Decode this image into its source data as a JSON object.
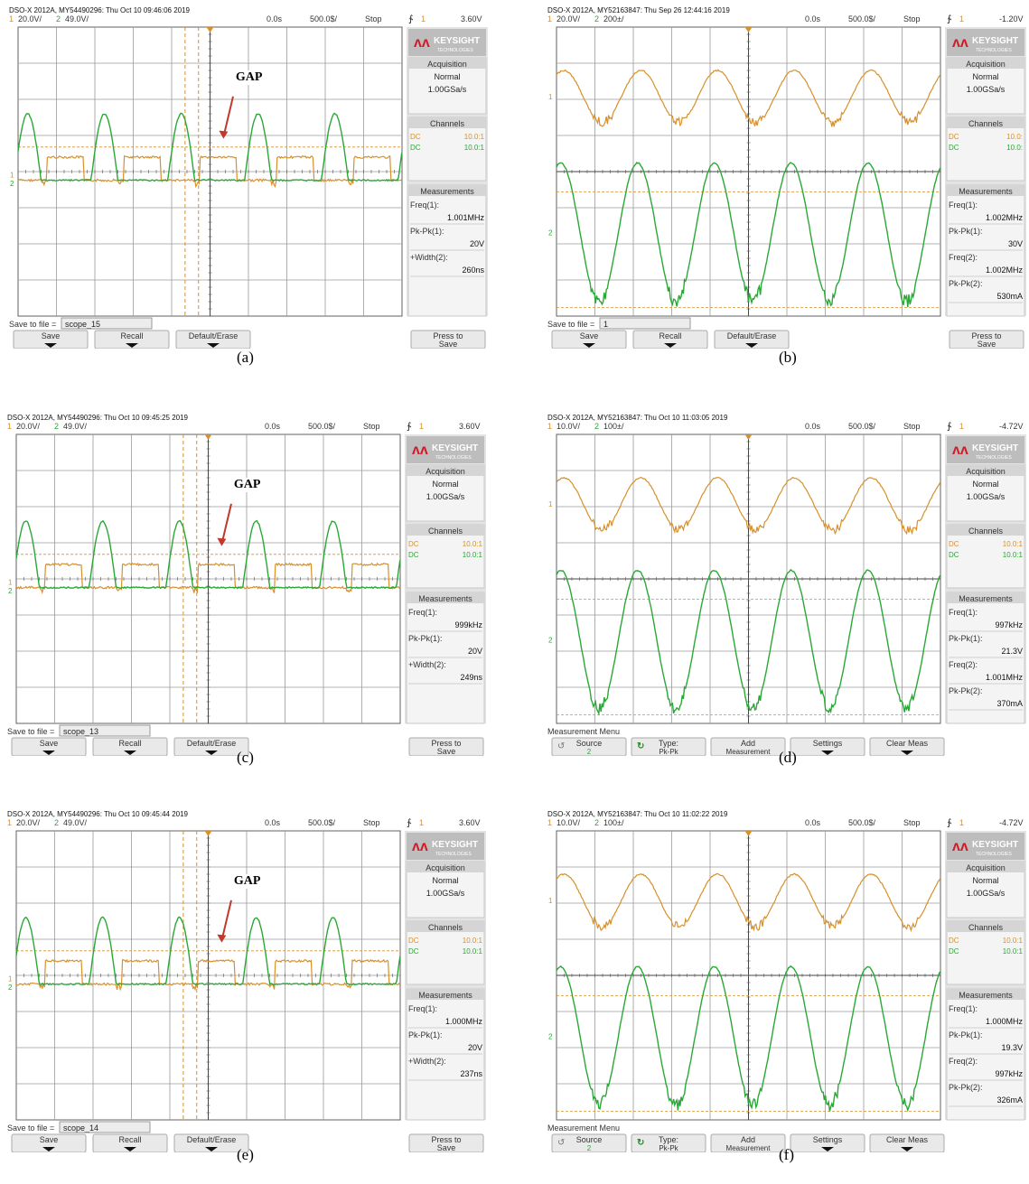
{
  "colors": {
    "ch1": "#d7902b",
    "ch2": "#2aa836",
    "brand": "#d01c2a",
    "grid": "#606060",
    "sidepanel": "#e3e3e3",
    "softkey": "#e9e9e9"
  },
  "panels": [
    {
      "caption": "(a)",
      "header": "DSO-X 2012A, MY54490296: Thu Oct 10 09:46:06 2019",
      "ch1_scale": "20.0V/",
      "ch2_scale": "49.0V/",
      "time_pos": "0.0s",
      "time_scale": "500.0$/",
      "run_state": "Stop",
      "trig_ch": "1",
      "trig_level": "3.60V",
      "brand": "KEYSIGHT",
      "brand_sub": "TECHNOLOGIES",
      "gap_label": "GAP",
      "acquisition": {
        "title": "Acquisition",
        "mode": "Normal",
        "rate": "1.00GSa/s"
      },
      "channels": {
        "title": "Channels",
        "rows": [
          {
            "coupling": "DC",
            "probe": "10.0:1"
          },
          {
            "coupling": "DC",
            "probe": "10.0:1"
          }
        ]
      },
      "measurements": {
        "title": "Measurements",
        "items": [
          {
            "label": "Freq(1):",
            "value": "1.001MHz"
          },
          {
            "label": "Pk-Pk(1):",
            "value": "20V"
          },
          {
            "label": "+Width(2):",
            "value": "260ns"
          }
        ]
      },
      "file_prompt": {
        "label": "Save to file =",
        "value": "scope_15"
      },
      "softkeys": [
        "Save",
        "Recall",
        "Default/Erase"
      ],
      "right_key": {
        "line1": "Press to",
        "line2": "Save"
      }
    },
    {
      "caption": "(b)",
      "header": "DSO-X 2012A, MY52163847: Thu Sep 26 12:44:16 2019",
      "ch1_scale": "20.0V/",
      "ch2_scale": "200±/",
      "time_pos": "0.0s",
      "time_scale": "500.0$/",
      "run_state": "Stop",
      "trig_ch": "1",
      "trig_level": "-1.20V",
      "brand": "KEYSIGHT",
      "brand_sub": "TECHNOLOGIES",
      "acquisition": {
        "title": "Acquisition",
        "mode": "Normal",
        "rate": "1.00GSa/s"
      },
      "channels": {
        "title": "Channels",
        "rows": [
          {
            "coupling": "DC",
            "probe": "10.0:"
          },
          {
            "coupling": "DC",
            "probe": "10.0:"
          }
        ]
      },
      "measurements": {
        "title": "Measurements",
        "items": [
          {
            "label": "Freq(1):",
            "value": "1.002MHz"
          },
          {
            "label": "Pk-Pk(1):",
            "value": "30V"
          },
          {
            "label": "Freq(2):",
            "value": "1.002MHz"
          },
          {
            "label": "Pk-Pk(2):",
            "value": "530mA"
          }
        ]
      },
      "file_prompt": {
        "label": "Save to file =",
        "value": "1"
      },
      "softkeys": [
        "Save",
        "Recall",
        "Default/Erase"
      ],
      "right_key": {
        "line1": "Press to",
        "line2": "Save"
      }
    },
    {
      "caption": "(c)",
      "header": "DSO-X 2012A, MY54490296: Thu Oct 10 09:45:25 2019",
      "ch1_scale": "20.0V/",
      "ch2_scale": "49.0V/",
      "time_pos": "0.0s",
      "time_scale": "500.0$/",
      "run_state": "Stop",
      "trig_ch": "1",
      "trig_level": "3.60V",
      "brand": "KEYSIGHT",
      "brand_sub": "TECHNOLOGIES",
      "gap_label": "GAP",
      "acquisition": {
        "title": "Acquisition",
        "mode": "Normal",
        "rate": "1.00GSa/s"
      },
      "channels": {
        "title": "Channels",
        "rows": [
          {
            "coupling": "DC",
            "probe": "10.0:1"
          },
          {
            "coupling": "DC",
            "probe": "10.0:1"
          }
        ]
      },
      "measurements": {
        "title": "Measurements",
        "items": [
          {
            "label": "Freq(1):",
            "value": "999kHz"
          },
          {
            "label": "Pk-Pk(1):",
            "value": "20V"
          },
          {
            "label": "+Width(2):",
            "value": "249ns"
          }
        ]
      },
      "file_prompt": {
        "label": "Save to file =",
        "value": "scope_13"
      },
      "softkeys": [
        "Save",
        "Recall",
        "Default/Erase"
      ],
      "right_key": {
        "line1": "Press to",
        "line2": "Save"
      }
    },
    {
      "caption": "(d)",
      "header": "DSO-X 2012A, MY52163847: Thu Oct 10 11:03:05 2019",
      "ch1_scale": "10.0V/",
      "ch2_scale": "100±/",
      "time_pos": "0.0s",
      "time_scale": "500.0$/",
      "run_state": "Stop",
      "trig_ch": "1",
      "trig_level": "-4.72V",
      "brand": "KEYSIGHT",
      "brand_sub": "TECHNOLOGIES",
      "acquisition": {
        "title": "Acquisition",
        "mode": "Normal",
        "rate": "1.00GSa/s"
      },
      "channels": {
        "title": "Channels",
        "rows": [
          {
            "coupling": "DC",
            "probe": "10.0:1"
          },
          {
            "coupling": "DC",
            "probe": "10.0:1"
          }
        ]
      },
      "measurements": {
        "title": "Measurements",
        "items": [
          {
            "label": "Freq(1):",
            "value": "997kHz"
          },
          {
            "label": "Pk-Pk(1):",
            "value": "21.3V"
          },
          {
            "label": "Freq(2):",
            "value": "1.001MHz"
          },
          {
            "label": "Pk-Pk(2):",
            "value": "370mA"
          }
        ]
      },
      "file_prompt": {
        "label": "Measurement Menu",
        "value": ""
      },
      "softkeys": [
        {
          "line1": "Source",
          "line2": "2"
        },
        {
          "line1": "Type:",
          "line2": "Pk-Pk"
        },
        {
          "line1": "Add",
          "line2": "Measurement"
        },
        {
          "line1": "Settings",
          "line2": ""
        },
        {
          "line1": "Clear Meas",
          "line2": ""
        }
      ]
    },
    {
      "caption": "(e)",
      "header": "DSO-X 2012A, MY54490296: Thu Oct 10 09:45:44 2019",
      "ch1_scale": "20.0V/",
      "ch2_scale": "49.0V/",
      "time_pos": "0.0s",
      "time_scale": "500.0$/",
      "run_state": "Stop",
      "trig_ch": "1",
      "trig_level": "3.60V",
      "brand": "KEYSIGHT",
      "brand_sub": "TECHNOLOGIES",
      "gap_label": "GAP",
      "acquisition": {
        "title": "Acquisition",
        "mode": "Normal",
        "rate": "1.00GSa/s"
      },
      "channels": {
        "title": "Channels",
        "rows": [
          {
            "coupling": "DC",
            "probe": "10.0:1"
          },
          {
            "coupling": "DC",
            "probe": "10.0:1"
          }
        ]
      },
      "measurements": {
        "title": "Measurements",
        "items": [
          {
            "label": "Freq(1):",
            "value": "1.000MHz"
          },
          {
            "label": "Pk-Pk(1):",
            "value": "20V"
          },
          {
            "label": "+Width(2):",
            "value": "237ns"
          }
        ]
      },
      "file_prompt": {
        "label": "Save to file =",
        "value": "scope_14"
      },
      "softkeys": [
        "Save",
        "Recall",
        "Default/Erase"
      ],
      "right_key": {
        "line1": "Press to",
        "line2": "Save"
      }
    },
    {
      "caption": "(f)",
      "header": "DSO-X 2012A, MY52163847: Thu Oct 10 11:02:22 2019",
      "ch1_scale": "10.0V/",
      "ch2_scale": "100±/",
      "time_pos": "0.0s",
      "time_scale": "500.0$/",
      "run_state": "Stop",
      "trig_ch": "1",
      "trig_level": "-4.72V",
      "brand": "KEYSIGHT",
      "brand_sub": "TECHNOLOGIES",
      "acquisition": {
        "title": "Acquisition",
        "mode": "Normal",
        "rate": "1.00GSa/s"
      },
      "channels": {
        "title": "Channels",
        "rows": [
          {
            "coupling": "DC",
            "probe": "10.0:1"
          },
          {
            "coupling": "DC",
            "probe": "10.0:1"
          }
        ]
      },
      "measurements": {
        "title": "Measurements",
        "items": [
          {
            "label": "Freq(1):",
            "value": "1.000MHz"
          },
          {
            "label": "Pk-Pk(1):",
            "value": "19.3V"
          },
          {
            "label": "Freq(2):",
            "value": "997kHz"
          },
          {
            "label": "Pk-Pk(2):",
            "value": "326mA"
          }
        ]
      },
      "file_prompt": {
        "label": "Measurement Menu",
        "value": ""
      },
      "softkeys": [
        {
          "line1": "Source",
          "line2": "2"
        },
        {
          "line1": "Type:",
          "line2": "Pk-Pk"
        },
        {
          "line1": "Add",
          "line2": "Measurement"
        },
        {
          "line1": "Settings",
          "line2": ""
        },
        {
          "line1": "Clear Meas",
          "line2": ""
        }
      ]
    }
  ]
}
